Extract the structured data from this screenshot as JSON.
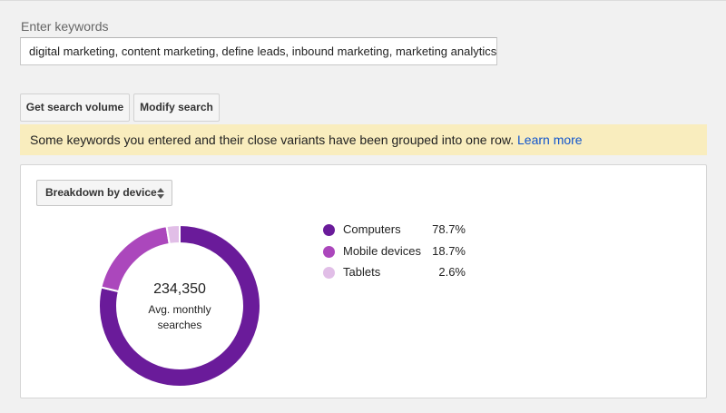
{
  "keywords": {
    "label": "Enter keywords",
    "value": "digital marketing, content marketing, define leads, inbound marketing, marketing analytics, wh"
  },
  "buttons": {
    "get_volume": "Get search volume",
    "modify": "Modify search"
  },
  "notice": {
    "text": "Some keywords you entered and their close variants have been grouped into one row.",
    "link": "Learn more"
  },
  "breakdown": {
    "dropdown_label": "Breakdown by device",
    "total": "234,350",
    "total_label": "Avg. monthly searches"
  },
  "colors": {
    "notice_bg": "#f9edbe",
    "link": "#1155cc",
    "computers": "#6a1b9a",
    "mobile": "#ab47bc",
    "tablets": "#e1bee7"
  },
  "chart_data": {
    "type": "pie",
    "variant": "donut",
    "center_value": "234,350",
    "center_label": "Avg. monthly searches",
    "legend_position": "right",
    "series": [
      {
        "name": "Computers",
        "value": 78.7,
        "label": "78.7%",
        "color": "#6a1b9a"
      },
      {
        "name": "Mobile devices",
        "value": 18.7,
        "label": "18.7%",
        "color": "#ab47bc"
      },
      {
        "name": "Tablets",
        "value": 2.6,
        "label": "2.6%",
        "color": "#e1bee7"
      }
    ]
  }
}
